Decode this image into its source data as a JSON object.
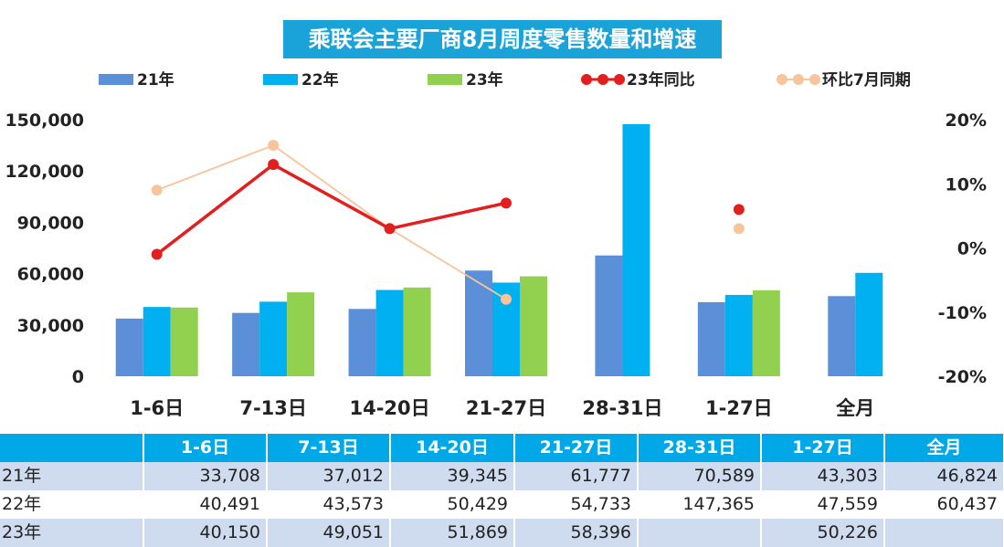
{
  "chart_data": {
    "type": "bar",
    "title": "乘联会主要厂商8月周度零售数量和增速",
    "categories": [
      "1-6日",
      "7-13日",
      "14-20日",
      "21-27日",
      "28-31日",
      "1-27日",
      "全月"
    ],
    "series": [
      {
        "name": "21年",
        "kind": "bar",
        "axis": "left",
        "values": [
          33708,
          37012,
          39345,
          61777,
          70589,
          43303,
          46824
        ]
      },
      {
        "name": "22年",
        "kind": "bar",
        "axis": "left",
        "values": [
          40491,
          43573,
          50429,
          54733,
          147365,
          47559,
          60437
        ]
      },
      {
        "name": "23年",
        "kind": "bar",
        "axis": "left",
        "values": [
          40150,
          49051,
          51869,
          58396,
          null,
          50226,
          null
        ]
      },
      {
        "name": "23年同比",
        "kind": "line",
        "axis": "right",
        "values": [
          -0.01,
          0.13,
          0.03,
          0.07,
          null,
          0.06,
          null
        ]
      },
      {
        "name": "环比7月同期",
        "kind": "line",
        "axis": "right",
        "values": [
          0.09,
          0.16,
          0.03,
          -0.08,
          null,
          0.03,
          null
        ]
      }
    ],
    "y_left": {
      "ticks": [
        "150,000",
        "120,000",
        "90,000",
        "60,000",
        "30,000",
        "0"
      ],
      "range": [
        0,
        150000
      ]
    },
    "y_right": {
      "ticks": [
        "20%",
        "10%",
        "0%",
        "-10%",
        "-20%"
      ],
      "range": [
        -0.2,
        0.2
      ]
    },
    "legend_position": "top",
    "grid": false
  },
  "colors": {
    "bar21": "#5b8fd7",
    "bar22": "#00b0f0",
    "bar23": "#92d050",
    "line_yoy": "#e31e1e",
    "line_mom": "#f8c49b",
    "title_bg": "#1aa3d9",
    "axis_text": "#222222"
  },
  "table": {
    "headers": [
      "",
      "1-6日",
      "7-13日",
      "14-20日",
      "21-27日",
      "28-31日",
      "1-27日",
      "全月"
    ],
    "rows": [
      {
        "label": "21年",
        "cells": [
          "33,708",
          "37,012",
          "39,345",
          "61,777",
          "70,589",
          "43,303",
          "46,824"
        ]
      },
      {
        "label": "22年",
        "cells": [
          "40,491",
          "43,573",
          "50,429",
          "54,733",
          "147,365",
          "47,559",
          "60,437"
        ]
      },
      {
        "label": "23年",
        "cells": [
          "40,150",
          "49,051",
          "51,869",
          "58,396",
          "",
          "50,226",
          ""
        ]
      }
    ]
  }
}
